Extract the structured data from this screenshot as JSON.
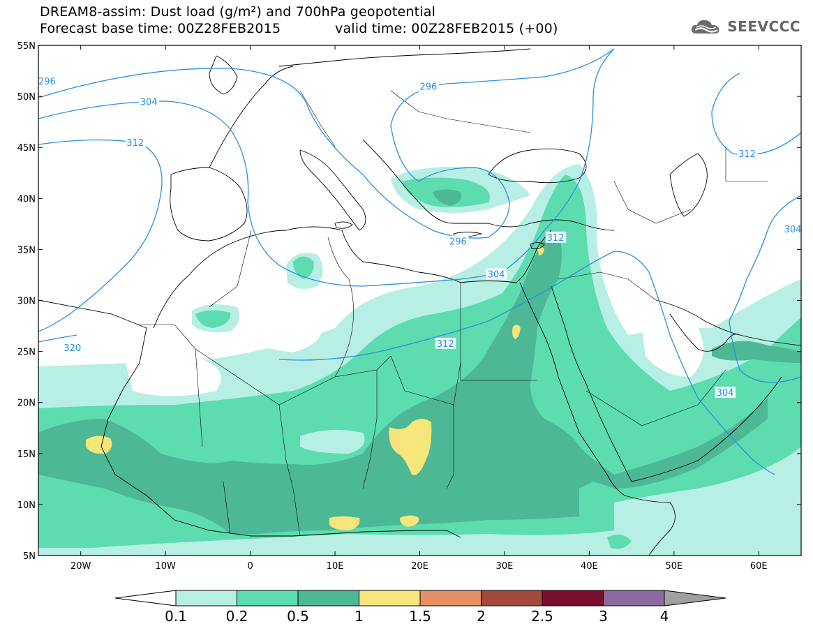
{
  "header": {
    "title_line1": "DREAM8-assim: Dust load (g/m²) and 700hPa geopotential",
    "title_line2_base": "Forecast base time: 00Z28FEB2015",
    "title_line2_valid": "valid time: 00Z28FEB2015 (+00)",
    "logo_text": "SEEVCCC",
    "logo_icon": "cloud-icon"
  },
  "map": {
    "lon_range": [
      -25,
      65
    ],
    "lat_range": [
      5,
      55
    ],
    "lon_ticks": [
      {
        "value": -20,
        "label": "20W"
      },
      {
        "value": -10,
        "label": "10W"
      },
      {
        "value": 0,
        "label": "0"
      },
      {
        "value": 10,
        "label": "10E"
      },
      {
        "value": 20,
        "label": "20E"
      },
      {
        "value": 30,
        "label": "30E"
      },
      {
        "value": 40,
        "label": "40E"
      },
      {
        "value": 50,
        "label": "50E"
      },
      {
        "value": 60,
        "label": "60E"
      }
    ],
    "lat_ticks": [
      {
        "value": 55,
        "label": "55N"
      },
      {
        "value": 50,
        "label": "50N"
      },
      {
        "value": 45,
        "label": "45N"
      },
      {
        "value": 40,
        "label": "40N"
      },
      {
        "value": 35,
        "label": "35N"
      },
      {
        "value": 30,
        "label": "30N"
      },
      {
        "value": 25,
        "label": "25N"
      },
      {
        "value": 20,
        "label": "20N"
      },
      {
        "value": 15,
        "label": "15N"
      },
      {
        "value": 10,
        "label": "10N"
      }
    ],
    "contour_labels": [
      {
        "text": "296",
        "lon": -25,
        "lat": 51.5
      },
      {
        "text": "296",
        "lon": 20,
        "lat": 51
      },
      {
        "text": "296",
        "lon": 23.5,
        "lat": 35.8
      },
      {
        "text": "304",
        "lon": -13,
        "lat": 49.5
      },
      {
        "text": "304",
        "lon": 28,
        "lat": 32.6
      },
      {
        "text": "304",
        "lon": 63,
        "lat": 37
      },
      {
        "text": "304",
        "lon": 55,
        "lat": 21
      },
      {
        "text": "312",
        "lon": -14.6,
        "lat": 45.5
      },
      {
        "text": "312",
        "lon": 35,
        "lat": 36.2
      },
      {
        "text": "312",
        "lon": 22,
        "lat": 25.8
      },
      {
        "text": "312",
        "lon": 57.6,
        "lat": 44.4
      },
      {
        "text": "320",
        "lon": -22,
        "lat": 25.4
      }
    ],
    "colors": {
      "land_line": "#000000",
      "contour": "#2a8fe0",
      "background": "#ffffff"
    }
  },
  "colorbar": {
    "levels": [
      "0.1",
      "0.2",
      "0.5",
      "1",
      "1.5",
      "2",
      "2.5",
      "3",
      "4"
    ],
    "colors": [
      "#b7efe4",
      "#5ddcb0",
      "#4cb895",
      "#f5e57a",
      "#e58f66",
      "#a34a3e",
      "#7a0e2d",
      "#8c6a9f"
    ],
    "under_color": "#ffffff",
    "over_color": "#a0a0a0"
  }
}
